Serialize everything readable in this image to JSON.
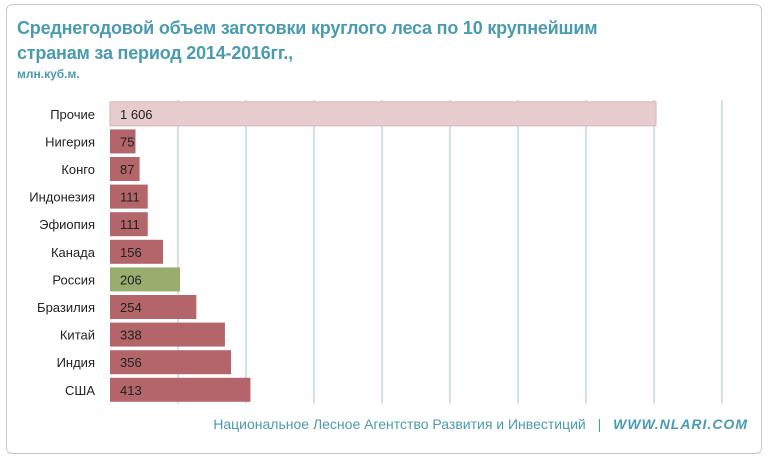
{
  "title_line1": "Среднегодовой объем заготовки круглого леса по 10 крупнейшим",
  "title_line2": "странам за период 2014-2016гг.,",
  "unit": "млн.куб.м.",
  "footer": {
    "org": "Национальное Лесное Агентство  Развития  и Инвестиций",
    "separator": "|",
    "site": "WWW.NLARI.COM"
  },
  "colors": {
    "bar": "#b4656a",
    "bar_highlight": "#98ad6e",
    "bar_other": "#e7cccd",
    "gridline": "#9fc7d3",
    "title": "#4a9bb0"
  },
  "chart_data": {
    "type": "bar",
    "orientation": "horizontal",
    "categories": [
      "Прочие",
      "Нигерия",
      "Конго",
      "Индонезия",
      "Эфиопия",
      "Канада",
      "Россия",
      "Бразилия",
      "Китай",
      "Индия",
      "США"
    ],
    "values": [
      1606,
      75,
      87,
      111,
      111,
      156,
      206,
      254,
      338,
      356,
      413
    ],
    "value_labels": [
      "1 606",
      "75",
      "87",
      "111",
      "111",
      "156",
      "206",
      "254",
      "338",
      "356",
      "413"
    ],
    "highlight": "Россия",
    "other": "Прочие",
    "xlim": [
      0,
      1800
    ],
    "grid": true,
    "title": "Среднегодовой объем заготовки круглого леса по 10 крупнейшим странам за период 2014-2016гг.,",
    "unit": "млн.куб.м."
  }
}
